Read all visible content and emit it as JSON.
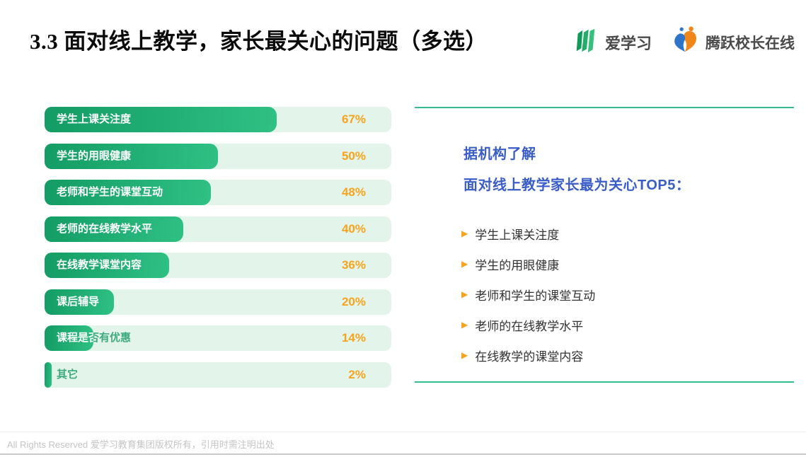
{
  "title": "3.3 面对线上教学，家长最关心的问题（多选）",
  "logos": {
    "aixuexi": {
      "label": "爱学习"
    },
    "tengyue": {
      "label": "腾跃校长在线"
    }
  },
  "chart_data": {
    "type": "bar",
    "orientation": "horizontal",
    "categories": [
      "学生上课关注度",
      "学生的用眼健康",
      "老师和学生的课堂互动",
      "老师的在线教学水平",
      "在线教学课堂内容",
      "课后辅导",
      "课程是否有优惠",
      "其它"
    ],
    "values": [
      67,
      50,
      48,
      40,
      36,
      20,
      14,
      2
    ],
    "value_suffix": "%",
    "xlim": [
      0,
      100
    ],
    "grid": false,
    "legend": false,
    "colors": {
      "fill_gradient": [
        "#139c64",
        "#2fc084"
      ],
      "track": "#e3f4ea",
      "value_text": "#f6a41e",
      "label_on_fill": "#ffffff",
      "label_on_track": "#3fa980"
    }
  },
  "panel": {
    "heading_line1": "据机构了解",
    "heading_line2": "面对线上教学家长最为关心TOP5：",
    "heading_color": "#3a5dc8",
    "bullet": "▶",
    "bullet_color": "#f6a41e",
    "rule_color": "#35bd92",
    "items": [
      "学生上课关注度",
      "学生的用眼健康",
      "老师和学生的课堂互动",
      "老师的在线教学水平",
      "在线教学的课堂内容"
    ]
  },
  "footer": {
    "text": "All Rights Reserved 爱学习教育集团版权所有，引用时需注明出处"
  }
}
